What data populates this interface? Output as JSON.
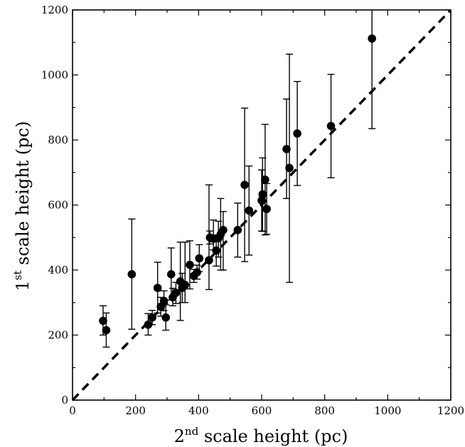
{
  "chart_data": {
    "type": "scatter",
    "title": "",
    "xlabel": {
      "prefix": "2",
      "sup": "nd",
      "rest": " scale height (pc)"
    },
    "ylabel": {
      "prefix": "1",
      "sup": "st",
      "rest": " scale height (pc)"
    },
    "xlim": [
      0,
      1200
    ],
    "ylim": [
      0,
      1200
    ],
    "xticks": [
      0,
      200,
      400,
      600,
      800,
      1000,
      1200
    ],
    "yticks": [
      0,
      200,
      400,
      600,
      800,
      1000,
      1200
    ],
    "grid": false,
    "reference_line": {
      "style": "dashed",
      "from": [
        0,
        0
      ],
      "to": [
        1200,
        1200
      ]
    },
    "points": [
      {
        "x": 97,
        "y": 244,
        "yerr_low": 200,
        "yerr_high": 290
      },
      {
        "x": 107,
        "y": 215,
        "yerr_low": 163,
        "yerr_high": 268
      },
      {
        "x": 188,
        "y": 387,
        "yerr_low": 218,
        "yerr_high": 557
      },
      {
        "x": 240,
        "y": 232,
        "yerr_low": 200,
        "yerr_high": 266
      },
      {
        "x": 253,
        "y": 254,
        "yerr_low": 232,
        "yerr_high": 276
      },
      {
        "x": 270,
        "y": 345,
        "yerr_low": 268,
        "yerr_high": 424
      },
      {
        "x": 280,
        "y": 287,
        "yerr_low": 258,
        "yerr_high": 316
      },
      {
        "x": 290,
        "y": 305,
        "yerr_low": 275,
        "yerr_high": 336
      },
      {
        "x": 296,
        "y": 254,
        "yerr_low": 215,
        "yerr_high": 293
      },
      {
        "x": 313,
        "y": 387,
        "yerr_low": 308,
        "yerr_high": 468
      },
      {
        "x": 318,
        "y": 316,
        "yerr_low": 290,
        "yerr_high": 344
      },
      {
        "x": 328,
        "y": 330,
        "yerr_low": 297,
        "yerr_high": 362
      },
      {
        "x": 342,
        "y": 365,
        "yerr_low": 245,
        "yerr_high": 486
      },
      {
        "x": 348,
        "y": 345,
        "yerr_low": 300,
        "yerr_high": 390
      },
      {
        "x": 357,
        "y": 354,
        "yerr_low": 300,
        "yerr_high": 486
      },
      {
        "x": 372,
        "y": 416,
        "yerr_low": 342,
        "yerr_high": 490
      },
      {
        "x": 385,
        "y": 382,
        "yerr_low": 362,
        "yerr_high": 402
      },
      {
        "x": 395,
        "y": 393,
        "yerr_low": 372,
        "yerr_high": 415
      },
      {
        "x": 402,
        "y": 436,
        "yerr_low": 395,
        "yerr_high": 478
      },
      {
        "x": 433,
        "y": 430,
        "yerr_low": 340,
        "yerr_high": 662
      },
      {
        "x": 436,
        "y": 500,
        "yerr_low": 480,
        "yerr_high": 520
      },
      {
        "x": 447,
        "y": 496,
        "yerr_low": 462,
        "yerr_high": 554
      },
      {
        "x": 456,
        "y": 460,
        "yerr_low": 412,
        "yerr_high": 508
      },
      {
        "x": 463,
        "y": 498,
        "yerr_low": 440,
        "yerr_high": 550
      },
      {
        "x": 470,
        "y": 510,
        "yerr_low": 400,
        "yerr_high": 620
      },
      {
        "x": 478,
        "y": 523,
        "yerr_low": 400,
        "yerr_high": 580
      },
      {
        "x": 524,
        "y": 523,
        "yerr_low": 440,
        "yerr_high": 606
      },
      {
        "x": 546,
        "y": 662,
        "yerr_low": 426,
        "yerr_high": 898
      },
      {
        "x": 560,
        "y": 583,
        "yerr_low": 446,
        "yerr_high": 720
      },
      {
        "x": 600,
        "y": 614,
        "yerr_low": 520,
        "yerr_high": 708
      },
      {
        "x": 603,
        "y": 633,
        "yerr_low": 519,
        "yerr_high": 745
      },
      {
        "x": 611,
        "y": 678,
        "yerr_low": 508,
        "yerr_high": 848
      },
      {
        "x": 616,
        "y": 588,
        "yerr_low": 510,
        "yerr_high": 666
      },
      {
        "x": 679,
        "y": 772,
        "yerr_low": 620,
        "yerr_high": 926
      },
      {
        "x": 688,
        "y": 714,
        "yerr_low": 362,
        "yerr_high": 1064
      },
      {
        "x": 713,
        "y": 820,
        "yerr_low": 660,
        "yerr_high": 980
      },
      {
        "x": 820,
        "y": 843,
        "yerr_low": 684,
        "yerr_high": 1002
      },
      {
        "x": 950,
        "y": 1112,
        "yerr_low": 835,
        "yerr_high": 1200
      }
    ],
    "marker_color": "#000000"
  }
}
